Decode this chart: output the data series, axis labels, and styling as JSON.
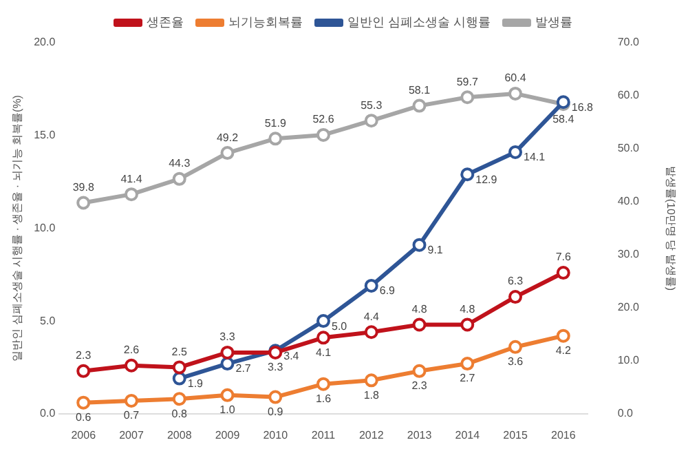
{
  "chart_data": {
    "type": "line",
    "categories": [
      "2006",
      "2007",
      "2008",
      "2009",
      "2010",
      "2011",
      "2012",
      "2013",
      "2014",
      "2015",
      "2016"
    ],
    "ylabel": "일반인 심폐소생술 시행률 · 생존율 · 뇌기능 회복률(%)",
    "y2label": "발생률(10만명 당 발생률)",
    "ylim": [
      0,
      20
    ],
    "yticks": [
      {
        "value": 0,
        "label": "0.0"
      },
      {
        "value": 5,
        "label": "5.0"
      },
      {
        "value": 10,
        "label": "10.0"
      },
      {
        "value": 15,
        "label": "15.0"
      },
      {
        "value": 20,
        "label": "20.0"
      }
    ],
    "y2lim": [
      0,
      70
    ],
    "y2ticks": [
      {
        "value": 0,
        "label": "0.0"
      },
      {
        "value": 10,
        "label": "10.0"
      },
      {
        "value": 20,
        "label": "20.0"
      },
      {
        "value": 30,
        "label": "30.0"
      },
      {
        "value": 40,
        "label": "40.0"
      },
      {
        "value": 50,
        "label": "50.0"
      },
      {
        "value": 60,
        "label": "60.0"
      },
      {
        "value": 70,
        "label": "70.0"
      }
    ],
    "series": [
      {
        "name": "생존율",
        "color": "#c0121b",
        "values": [
          2.3,
          2.6,
          2.5,
          3.3,
          3.3,
          4.1,
          4.4,
          4.8,
          4.8,
          6.3,
          7.6
        ],
        "value_labels": [
          "2.3",
          "2.6",
          "2.5",
          "3.3",
          "3.3",
          "4.1",
          "4.4",
          "4.8",
          "4.8",
          "6.3",
          "7.6"
        ]
      },
      {
        "name": "뇌기능회복률",
        "color": "#ed7d31",
        "values": [
          0.6,
          0.7,
          0.8,
          1.0,
          0.9,
          1.6,
          1.8,
          2.3,
          2.7,
          3.6,
          4.2
        ],
        "value_labels": [
          "0.6",
          "0.7",
          "0.8",
          "1.0",
          "0.9",
          "1.6",
          "1.8",
          "2.3",
          "2.7",
          "3.6",
          "4.2"
        ]
      },
      {
        "name": "일반인 심폐소생술 시행률",
        "color": "#2e5596",
        "values": [
          null,
          null,
          1.9,
          2.7,
          3.4,
          5.0,
          6.9,
          9.1,
          12.9,
          14.1,
          16.8
        ],
        "value_labels": [
          null,
          null,
          "1.9",
          "2.7",
          "3.4",
          "5.0",
          "6.9",
          "9.1",
          "12.9",
          "14.1",
          "16.8"
        ]
      },
      {
        "name": "발생률",
        "color": "#a6a6a6",
        "axis": "y2",
        "values": [
          39.8,
          41.4,
          44.3,
          49.2,
          51.9,
          52.6,
          55.3,
          58.1,
          59.7,
          60.4,
          58.4
        ],
        "value_labels": [
          "39.8",
          "41.4",
          "44.3",
          "49.2",
          "51.9",
          "52.6",
          "55.3",
          "58.1",
          "59.7",
          "60.4",
          "58.4"
        ]
      }
    ],
    "legend": "top",
    "marker": "circle",
    "line_style": "solid",
    "grid": false
  }
}
